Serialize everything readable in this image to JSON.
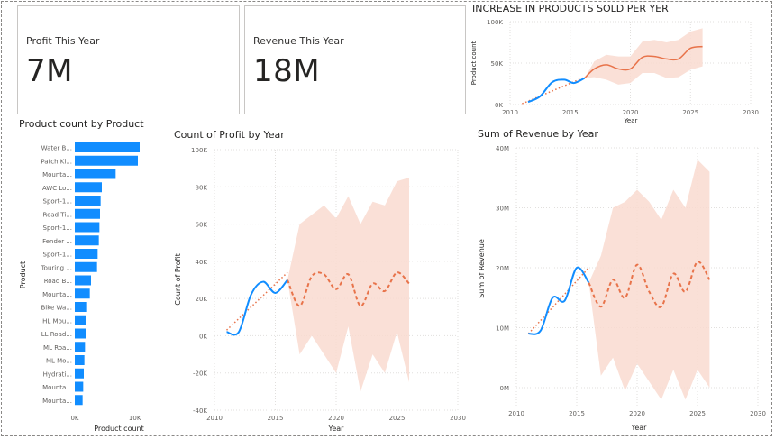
{
  "cards": [
    {
      "label": "Profit This Year",
      "value": "7M"
    },
    {
      "label": "Revenue This Year",
      "value": "18M"
    }
  ],
  "colors": {
    "actual": "#118dff",
    "trend": "#e8734a",
    "forecast": "#e8734a",
    "band": "#f9dbd0",
    "grid": "#e1dfdd",
    "tick": "#605e5c"
  },
  "chart_data": [
    {
      "id": "products-sold",
      "type": "line",
      "title": "INCREASE IN PRODUCTS SOLD PER YER",
      "xlabel": "Year",
      "ylabel": "Product count",
      "xlim": [
        2010,
        2030
      ],
      "ylim": [
        0,
        100000
      ],
      "xticks": [
        2010,
        2015,
        2020,
        2025,
        2030
      ],
      "yticks": [
        0,
        50000,
        100000
      ],
      "ytick_labels": [
        "0K",
        "50K",
        "100K"
      ],
      "actual": {
        "x": [
          2011.5,
          2012.5,
          2013.5,
          2014.5,
          2015.3,
          2016.2
        ],
        "y": [
          3000,
          10000,
          27000,
          30000,
          26000,
          32000
        ]
      },
      "trend": {
        "x": [
          2011,
          2016.2
        ],
        "y": [
          1000,
          33000
        ]
      },
      "forecast": {
        "x": [
          2016.2,
          2017,
          2018,
          2019,
          2020,
          2021,
          2022,
          2023,
          2024,
          2025,
          2026
        ],
        "y": [
          32000,
          43000,
          48000,
          43000,
          43000,
          57000,
          58000,
          55000,
          55000,
          68000,
          70000
        ]
      },
      "band": {
        "x": [
          2016.2,
          2017,
          2018,
          2019,
          2020,
          2021,
          2022,
          2023,
          2024,
          2025,
          2026
        ],
        "lo": [
          32000,
          33000,
          30000,
          24000,
          26000,
          38000,
          38000,
          32000,
          33000,
          42000,
          46000
        ],
        "hi": [
          32000,
          52000,
          60000,
          58000,
          58000,
          76000,
          78000,
          75000,
          78000,
          88000,
          92000
        ]
      }
    },
    {
      "id": "product-count",
      "type": "bar",
      "orientation": "horizontal",
      "title": "Product count by Product",
      "xlabel": "Product count",
      "ylabel": "Product",
      "xlim": [
        0,
        10500
      ],
      "xticks": [
        0,
        10000
      ],
      "xtick_labels": [
        "0K",
        "10K"
      ],
      "categories": [
        "Water B...",
        "Patch Ki...",
        "Mounta...",
        "AWC Lo...",
        "Sport-1...",
        "Road Ti...",
        "Sport-1...",
        "Fender ...",
        "Sport-1...",
        "Touring ...",
        "Road B...",
        "Mounta...",
        "Bike Wa...",
        "HL Mou...",
        "LL Road...",
        "ML Roa...",
        "ML Mo...",
        "Hydrati...",
        "Mounta...",
        "Mounta..."
      ],
      "values": [
        10800,
        10500,
        6800,
        4500,
        4300,
        4200,
        4100,
        4000,
        3800,
        3700,
        2700,
        2500,
        1900,
        1800,
        1800,
        1700,
        1600,
        1500,
        1400,
        1300
      ]
    },
    {
      "id": "profit-by-year",
      "type": "line",
      "title": "Count of Profit by Year",
      "xlabel": "Year",
      "ylabel": "Count of Profit",
      "xlim": [
        2010,
        2030
      ],
      "ylim": [
        -40000,
        100000
      ],
      "xticks": [
        2010,
        2015,
        2020,
        2025,
        2030
      ],
      "yticks": [
        -40000,
        -20000,
        0,
        20000,
        40000,
        60000,
        80000,
        100000
      ],
      "ytick_labels": [
        "-40K",
        "-20K",
        "0K",
        "20K",
        "40K",
        "60K",
        "80K",
        "100K"
      ],
      "actual": {
        "x": [
          2011,
          2012,
          2013,
          2014,
          2015,
          2016
        ],
        "y": [
          2000,
          2000,
          22000,
          29000,
          23000,
          30000
        ]
      },
      "trend": {
        "x": [
          2011,
          2016
        ],
        "y": [
          3000,
          34000
        ]
      },
      "forecast": {
        "x": [
          2016,
          2017,
          2018,
          2019,
          2020,
          2021,
          2022,
          2023,
          2024,
          2025,
          2026
        ],
        "y": [
          30000,
          16000,
          32000,
          33000,
          25000,
          33000,
          16000,
          28000,
          24000,
          34000,
          28000
        ]
      },
      "band": {
        "x": [
          2016,
          2017,
          2018,
          2019,
          2020,
          2021,
          2022,
          2023,
          2024,
          2025,
          2026
        ],
        "lo": [
          30000,
          -10000,
          0,
          -10000,
          -20000,
          5000,
          -30000,
          -10000,
          -20000,
          2000,
          -25000
        ],
        "hi": [
          30000,
          60000,
          65000,
          70000,
          63000,
          75000,
          60000,
          72000,
          70000,
          83000,
          85000
        ]
      }
    },
    {
      "id": "revenue-by-year",
      "type": "line",
      "title": "Sum of Revenue by Year",
      "xlabel": "Year",
      "ylabel": "Sum of Revenue",
      "xlim": [
        2010,
        2030
      ],
      "ylim": [
        -3000000,
        40000000
      ],
      "xticks": [
        2010,
        2015,
        2020,
        2025,
        2030
      ],
      "yticks": [
        0,
        10000000,
        20000000,
        30000000,
        40000000
      ],
      "ytick_labels": [
        "0M",
        "10M",
        "20M",
        "30M",
        "40M"
      ],
      "actual": {
        "x": [
          2011,
          2012,
          2013,
          2014,
          2015,
          2016
        ],
        "y": [
          9000000,
          9500000,
          15000000,
          14500000,
          20000000,
          17500000
        ]
      },
      "trend": {
        "x": [
          2011,
          2016
        ],
        "y": [
          9000000,
          20000000
        ]
      },
      "forecast": {
        "x": [
          2016,
          2017,
          2018,
          2019,
          2020,
          2021,
          2022,
          2023,
          2024,
          2025,
          2026
        ],
        "y": [
          17500000,
          13500000,
          18000000,
          15000000,
          20500000,
          16000000,
          13500000,
          19000000,
          16000000,
          21000000,
          18000000
        ]
      },
      "band": {
        "x": [
          2016,
          2017,
          2018,
          2019,
          2020,
          2021,
          2022,
          2023,
          2024,
          2025,
          2026
        ],
        "lo": [
          17500000,
          2000000,
          5000000,
          -500000,
          4000000,
          1000000,
          -2000000,
          3000000,
          -2000000,
          3000000,
          0
        ],
        "hi": [
          17500000,
          22000000,
          30000000,
          31000000,
          33000000,
          31000000,
          28000000,
          33000000,
          30000000,
          38000000,
          36000000
        ]
      }
    }
  ]
}
